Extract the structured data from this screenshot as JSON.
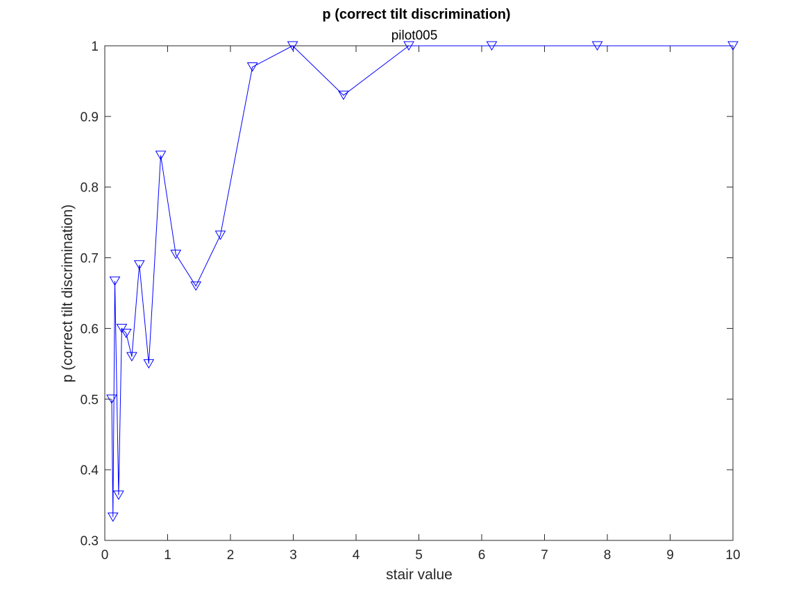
{
  "chart_data": {
    "type": "line",
    "title": "p (correct tilt discrimination)",
    "subtitle": "pilot005",
    "xlabel": "stair value",
    "ylabel": "p (correct tilt discrimination)",
    "xlim": [
      0,
      10
    ],
    "ylim": [
      0.3,
      1
    ],
    "xticks": [
      "0",
      "1",
      "2",
      "3",
      "4",
      "5",
      "6",
      "7",
      "8",
      "9",
      "10"
    ],
    "yticks": [
      "0.3",
      "0.4",
      "0.5",
      "0.6",
      "0.7",
      "0.8",
      "0.9",
      "1"
    ],
    "grid": false,
    "box": true,
    "marker": "triangle-down",
    "series": [
      {
        "color": "#0000ff",
        "x": [
          0.11,
          0.13,
          0.16,
          0.22,
          0.27,
          0.34,
          0.43,
          0.55,
          0.7,
          0.89,
          1.13,
          1.45,
          1.84,
          2.35,
          2.99,
          3.8,
          4.84,
          6.16,
          7.84,
          10.0
        ],
        "y": [
          0.5,
          0.333,
          0.667,
          0.364,
          0.6,
          0.593,
          0.56,
          0.69,
          0.55,
          0.845,
          0.705,
          0.66,
          0.732,
          0.97,
          1.0,
          0.93,
          1.0,
          1.0,
          1.0,
          1.0
        ]
      }
    ]
  }
}
